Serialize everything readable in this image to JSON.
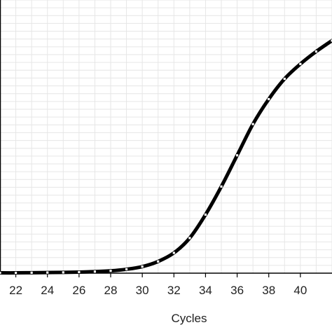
{
  "chart_data": {
    "type": "line",
    "title": "",
    "xlabel": "Cycles",
    "ylabel": "",
    "xlim": [
      21,
      42
    ],
    "ylim": [
      0,
      17.5
    ],
    "grid": true,
    "x_tick_labels": [
      "22",
      "24",
      "26",
      "28",
      "30",
      "32",
      "34",
      "36",
      "38",
      "40"
    ],
    "x": [
      21,
      22,
      23,
      24,
      25,
      26,
      27,
      28,
      29,
      30,
      31,
      32,
      33,
      34,
      35,
      36,
      37,
      38,
      39,
      40,
      41,
      42
    ],
    "series": [
      {
        "values": [
          0.02,
          0.02,
          0.03,
          0.04,
          0.05,
          0.07,
          0.1,
          0.15,
          0.25,
          0.42,
          0.75,
          1.3,
          2.25,
          3.75,
          5.55,
          7.55,
          9.55,
          11.15,
          12.45,
          13.4,
          14.2,
          14.9
        ]
      }
    ],
    "colors": {
      "line": "#000000",
      "marker_fill": "#ffffff",
      "grid": "#e6e6e6",
      "axis": "#000000",
      "text": "#222222"
    }
  }
}
